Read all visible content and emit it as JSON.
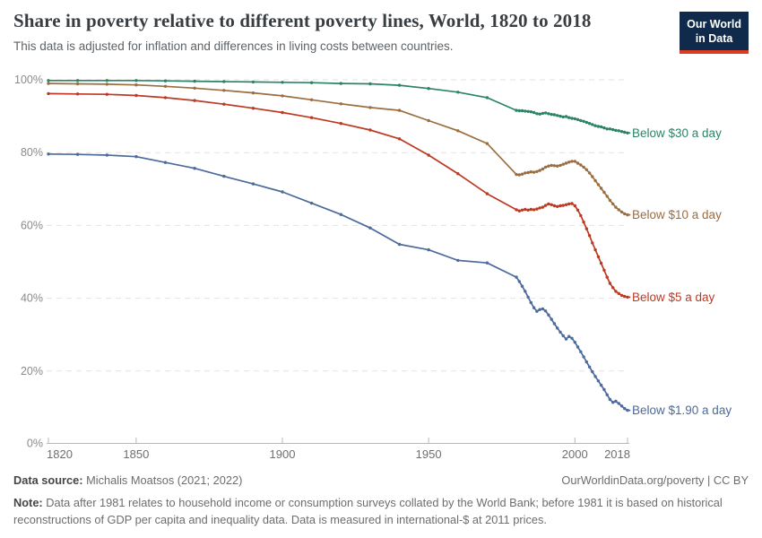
{
  "header": {
    "title": "Share in poverty relative to different poverty lines, World, 1820 to 2018",
    "subtitle": "This data is adjusted for inflation and differences in living costs between countries.",
    "logo": {
      "line1": "Our World",
      "line2": "in Data"
    }
  },
  "footer": {
    "datasource_label": "Data source:",
    "datasource_text": "Michalis Moatsos (2021; 2022)",
    "link": "OurWorldinData.org/poverty | CC BY",
    "note_label": "Note:",
    "note_text": "Data after 1981 relates to household income or consumption surveys collated by the World Bank; before 1981 it is based on historical reconstructions of GDP per capita and inequality data. Data is measured in international-$ at 2011 prices."
  },
  "chart_data": {
    "type": "line",
    "title": "Share in poverty relative to different poverty lines, World, 1820 to 2018",
    "subtitle": "This data is adjusted for inflation and differences in living costs between countries.",
    "xlabel": "",
    "ylabel": "",
    "xlim": [
      1820,
      2018
    ],
    "ylim": [
      0,
      100
    ],
    "grid": "horizontal-dashed",
    "legend_position": "end-of-line-labels",
    "x_ticks": [
      [
        1820,
        "1820"
      ],
      [
        1850,
        "1850"
      ],
      [
        1900,
        "1900"
      ],
      [
        1950,
        "1950"
      ],
      [
        2000,
        "2000"
      ],
      [
        2018,
        "2018"
      ]
    ],
    "y_ticks": [
      [
        0,
        "0%"
      ],
      [
        20,
        "20%"
      ],
      [
        40,
        "40%"
      ],
      [
        60,
        "60%"
      ],
      [
        80,
        "80%"
      ],
      [
        100,
        "100%"
      ]
    ],
    "series": [
      {
        "name": "Below $30 a day",
        "color": "#2C8465",
        "points": [
          [
            1820,
            99.8
          ],
          [
            1830,
            99.8
          ],
          [
            1840,
            99.8
          ],
          [
            1850,
            99.8
          ],
          [
            1860,
            99.7
          ],
          [
            1870,
            99.6
          ],
          [
            1880,
            99.5
          ],
          [
            1890,
            99.4
          ],
          [
            1900,
            99.3
          ],
          [
            1910,
            99.2
          ],
          [
            1920,
            99.0
          ],
          [
            1930,
            98.9
          ],
          [
            1940,
            98.5
          ],
          [
            1950,
            97.6
          ],
          [
            1960,
            96.6
          ],
          [
            1970,
            95.1
          ],
          [
            1980,
            91.6
          ],
          [
            1981,
            91.5
          ],
          [
            1982,
            91.5
          ],
          [
            1983,
            91.4
          ],
          [
            1984,
            91.3
          ],
          [
            1985,
            91.2
          ],
          [
            1986,
            91.0
          ],
          [
            1987,
            90.7
          ],
          [
            1988,
            90.6
          ],
          [
            1989,
            90.8
          ],
          [
            1990,
            90.9
          ],
          [
            1991,
            90.7
          ],
          [
            1992,
            90.5
          ],
          [
            1993,
            90.4
          ],
          [
            1994,
            90.2
          ],
          [
            1995,
            90.0
          ],
          [
            1996,
            89.8
          ],
          [
            1997,
            89.9
          ],
          [
            1998,
            89.6
          ],
          [
            1999,
            89.4
          ],
          [
            2000,
            89.3
          ],
          [
            2001,
            89.1
          ],
          [
            2002,
            88.8
          ],
          [
            2003,
            88.6
          ],
          [
            2004,
            88.3
          ],
          [
            2005,
            88.0
          ],
          [
            2006,
            87.7
          ],
          [
            2007,
            87.4
          ],
          [
            2008,
            87.2
          ],
          [
            2009,
            87.1
          ],
          [
            2010,
            86.8
          ],
          [
            2011,
            86.5
          ],
          [
            2012,
            86.5
          ],
          [
            2013,
            86.3
          ],
          [
            2014,
            86.1
          ],
          [
            2015,
            86.0
          ],
          [
            2016,
            85.8
          ],
          [
            2017,
            85.6
          ],
          [
            2018,
            85.4
          ]
        ]
      },
      {
        "name": "Below $10 a day",
        "color": "#9A6E3F",
        "points": [
          [
            1820,
            99.0
          ],
          [
            1830,
            98.9
          ],
          [
            1840,
            98.8
          ],
          [
            1850,
            98.6
          ],
          [
            1860,
            98.2
          ],
          [
            1870,
            97.7
          ],
          [
            1880,
            97.1
          ],
          [
            1890,
            96.4
          ],
          [
            1900,
            95.6
          ],
          [
            1910,
            94.5
          ],
          [
            1920,
            93.4
          ],
          [
            1930,
            92.4
          ],
          [
            1940,
            91.6
          ],
          [
            1950,
            88.8
          ],
          [
            1960,
            86.0
          ],
          [
            1970,
            82.5
          ],
          [
            1980,
            74.0
          ],
          [
            1981,
            73.9
          ],
          [
            1982,
            74.1
          ],
          [
            1983,
            74.4
          ],
          [
            1984,
            74.5
          ],
          [
            1985,
            74.7
          ],
          [
            1986,
            74.6
          ],
          [
            1987,
            74.8
          ],
          [
            1988,
            75.1
          ],
          [
            1989,
            75.5
          ],
          [
            1990,
            76.0
          ],
          [
            1991,
            76.3
          ],
          [
            1992,
            76.5
          ],
          [
            1993,
            76.4
          ],
          [
            1994,
            76.3
          ],
          [
            1995,
            76.5
          ],
          [
            1996,
            76.8
          ],
          [
            1997,
            77.1
          ],
          [
            1998,
            77.4
          ],
          [
            1999,
            77.6
          ],
          [
            2000,
            77.6
          ],
          [
            2001,
            77.1
          ],
          [
            2002,
            76.6
          ],
          [
            2003,
            76.0
          ],
          [
            2004,
            75.3
          ],
          [
            2005,
            74.4
          ],
          [
            2006,
            73.4
          ],
          [
            2007,
            72.3
          ],
          [
            2008,
            71.2
          ],
          [
            2009,
            70.2
          ],
          [
            2010,
            69.1
          ],
          [
            2011,
            68.0
          ],
          [
            2012,
            66.9
          ],
          [
            2013,
            65.9
          ],
          [
            2014,
            65.0
          ],
          [
            2015,
            64.3
          ],
          [
            2016,
            63.7
          ],
          [
            2017,
            63.2
          ],
          [
            2018,
            62.9
          ]
        ]
      },
      {
        "name": "Below $5 a day",
        "color": "#BC3A23",
        "points": [
          [
            1820,
            96.2
          ],
          [
            1830,
            96.1
          ],
          [
            1840,
            96.0
          ],
          [
            1850,
            95.7
          ],
          [
            1860,
            95.1
          ],
          [
            1870,
            94.3
          ],
          [
            1880,
            93.3
          ],
          [
            1890,
            92.2
          ],
          [
            1900,
            91.0
          ],
          [
            1910,
            89.6
          ],
          [
            1920,
            88.0
          ],
          [
            1930,
            86.2
          ],
          [
            1940,
            83.8
          ],
          [
            1950,
            79.3
          ],
          [
            1960,
            74.2
          ],
          [
            1970,
            68.7
          ],
          [
            1980,
            64.3
          ],
          [
            1981,
            64.0
          ],
          [
            1982,
            64.2
          ],
          [
            1983,
            64.4
          ],
          [
            1984,
            64.2
          ],
          [
            1985,
            64.4
          ],
          [
            1986,
            64.3
          ],
          [
            1987,
            64.5
          ],
          [
            1988,
            64.8
          ],
          [
            1989,
            65.0
          ],
          [
            1990,
            65.5
          ],
          [
            1991,
            65.9
          ],
          [
            1992,
            65.7
          ],
          [
            1993,
            65.4
          ],
          [
            1994,
            65.2
          ],
          [
            1995,
            65.4
          ],
          [
            1996,
            65.5
          ],
          [
            1997,
            65.7
          ],
          [
            1998,
            65.9
          ],
          [
            1999,
            66.0
          ],
          [
            2000,
            65.4
          ],
          [
            2001,
            64.2
          ],
          [
            2002,
            62.7
          ],
          [
            2003,
            60.9
          ],
          [
            2004,
            59.1
          ],
          [
            2005,
            57.2
          ],
          [
            2006,
            55.2
          ],
          [
            2007,
            53.3
          ],
          [
            2008,
            51.4
          ],
          [
            2009,
            49.6
          ],
          [
            2010,
            47.7
          ],
          [
            2011,
            45.8
          ],
          [
            2012,
            44.1
          ],
          [
            2013,
            42.9
          ],
          [
            2014,
            41.9
          ],
          [
            2015,
            41.3
          ],
          [
            2016,
            40.8
          ],
          [
            2017,
            40.5
          ],
          [
            2018,
            40.3
          ]
        ]
      },
      {
        "name": "Below $1.90 a day",
        "color": "#4C6A9C",
        "points": [
          [
            1820,
            79.6
          ],
          [
            1830,
            79.5
          ],
          [
            1840,
            79.3
          ],
          [
            1850,
            78.9
          ],
          [
            1860,
            77.3
          ],
          [
            1870,
            75.7
          ],
          [
            1880,
            73.5
          ],
          [
            1890,
            71.4
          ],
          [
            1900,
            69.2
          ],
          [
            1910,
            66.1
          ],
          [
            1920,
            63.0
          ],
          [
            1930,
            59.3
          ],
          [
            1940,
            54.8
          ],
          [
            1950,
            53.3
          ],
          [
            1960,
            50.4
          ],
          [
            1970,
            49.7
          ],
          [
            1980,
            45.8
          ],
          [
            1981,
            44.6
          ],
          [
            1982,
            43.3
          ],
          [
            1983,
            41.9
          ],
          [
            1984,
            40.3
          ],
          [
            1985,
            38.8
          ],
          [
            1986,
            37.4
          ],
          [
            1987,
            36.4
          ],
          [
            1988,
            36.9
          ],
          [
            1989,
            37.1
          ],
          [
            1990,
            36.5
          ],
          [
            1991,
            35.4
          ],
          [
            1992,
            34.2
          ],
          [
            1993,
            33.0
          ],
          [
            1994,
            31.8
          ],
          [
            1995,
            30.7
          ],
          [
            1996,
            29.7
          ],
          [
            1997,
            28.8
          ],
          [
            1998,
            29.5
          ],
          [
            1999,
            29.0
          ],
          [
            2000,
            27.9
          ],
          [
            2001,
            26.6
          ],
          [
            2002,
            25.3
          ],
          [
            2003,
            23.9
          ],
          [
            2004,
            22.5
          ],
          [
            2005,
            21.1
          ],
          [
            2006,
            19.8
          ],
          [
            2007,
            18.5
          ],
          [
            2008,
            17.3
          ],
          [
            2009,
            16.1
          ],
          [
            2010,
            14.9
          ],
          [
            2011,
            13.5
          ],
          [
            2012,
            12.2
          ],
          [
            2013,
            11.4
          ],
          [
            2014,
            11.7
          ],
          [
            2015,
            11.1
          ],
          [
            2016,
            10.4
          ],
          [
            2017,
            9.7
          ],
          [
            2018,
            9.2
          ]
        ]
      }
    ]
  }
}
